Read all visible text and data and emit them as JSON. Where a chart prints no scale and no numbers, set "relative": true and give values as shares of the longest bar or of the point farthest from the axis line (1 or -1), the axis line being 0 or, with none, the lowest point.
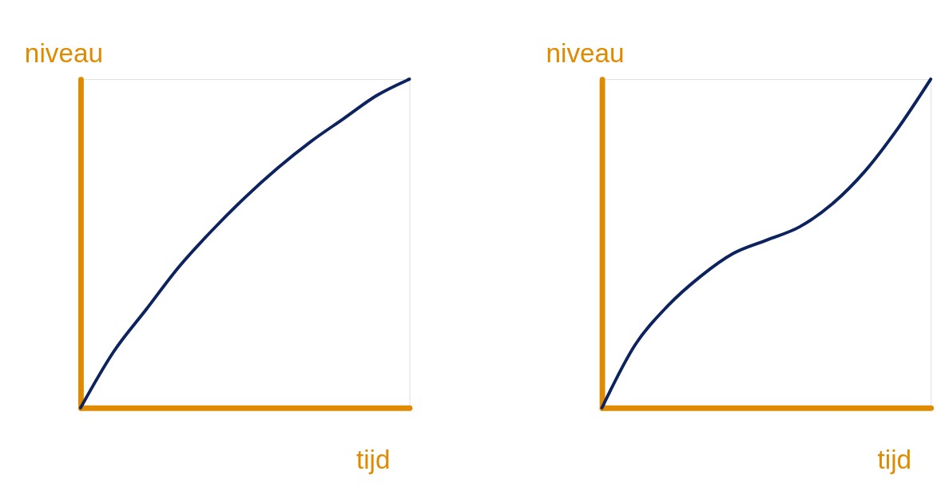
{
  "chart_data": [
    {
      "type": "line",
      "relative": true,
      "xlabel": "tijd",
      "ylabel": "niveau",
      "line_style": "solid",
      "categories": [
        null,
        null,
        null,
        null,
        null,
        null,
        null,
        null,
        null,
        null,
        null
      ],
      "series": [
        {
          "color": "#0d2360",
          "values": [
            0,
            0.17,
            0.3,
            0.43,
            0.54,
            0.64,
            0.73,
            0.81,
            0.88,
            0.95,
            1
          ]
        }
      ]
    },
    {
      "type": "line",
      "relative": true,
      "xlabel": "tijd",
      "ylabel": "niveau",
      "line_style": "solid",
      "categories": [
        null,
        null,
        null,
        null,
        null,
        null,
        null,
        null,
        null,
        null,
        null
      ],
      "series": [
        {
          "color": "#0d2360",
          "values": [
            0,
            0.19,
            0.31,
            0.4,
            0.47,
            0.51,
            0.55,
            0.62,
            0.72,
            0.85,
            1
          ]
        }
      ]
    }
  ]
}
